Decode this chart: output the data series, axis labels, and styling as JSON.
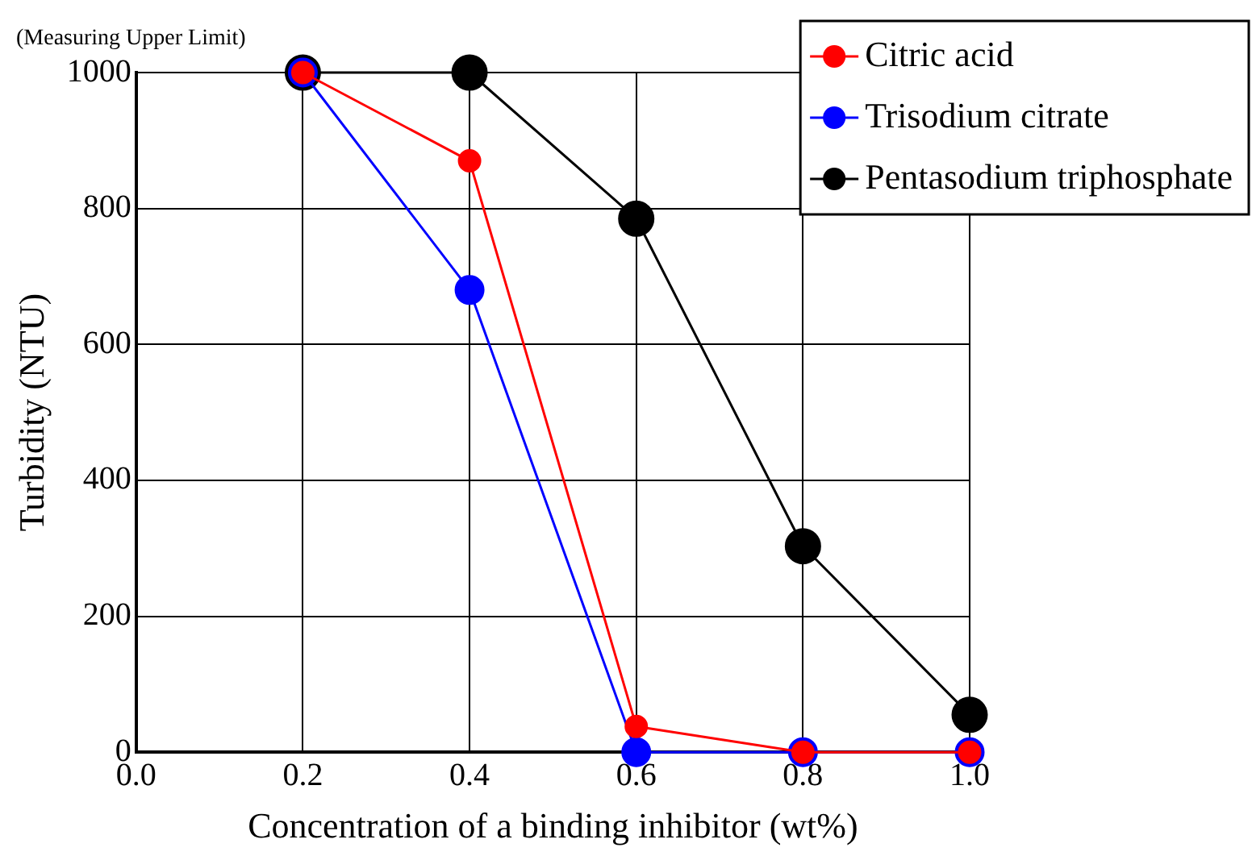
{
  "chart_data": {
    "type": "line",
    "xlabel": "Concentration of a binding inhibitor (wt%)",
    "ylabel": "Turbidity (NTU)",
    "annotations": [
      "(Measuring Upper Limit)"
    ],
    "x": [
      0.2,
      0.4,
      0.6,
      0.8,
      1.0
    ],
    "series": [
      {
        "name": "Citric acid",
        "color": "#ff0000",
        "values": [
          1000,
          870,
          38,
          0,
          0
        ]
      },
      {
        "name": "Trisodium citrate",
        "color": "#0000ff",
        "values": [
          1000,
          680,
          0,
          0,
          0
        ]
      },
      {
        "name": "Pentasodium triphosphate",
        "color": "#000000",
        "values": [
          1000,
          1000,
          785,
          303,
          55
        ]
      }
    ],
    "xlim": [
      0,
      1
    ],
    "xticks": [
      {
        "value": 0,
        "label": "0.0"
      },
      {
        "value": 0.2,
        "label": "0.2"
      },
      {
        "value": 0.4,
        "label": "0.4"
      },
      {
        "value": 0.6,
        "label": "0.6"
      },
      {
        "value": 0.8,
        "label": "0.8"
      },
      {
        "value": 1,
        "label": "1.0"
      }
    ],
    "ylim": [
      0,
      1000
    ],
    "yticks": [
      0,
      200,
      400,
      600,
      800,
      1000
    ],
    "grid": true,
    "legend": "top right",
    "marker": "circle",
    "line_style": "solid"
  }
}
